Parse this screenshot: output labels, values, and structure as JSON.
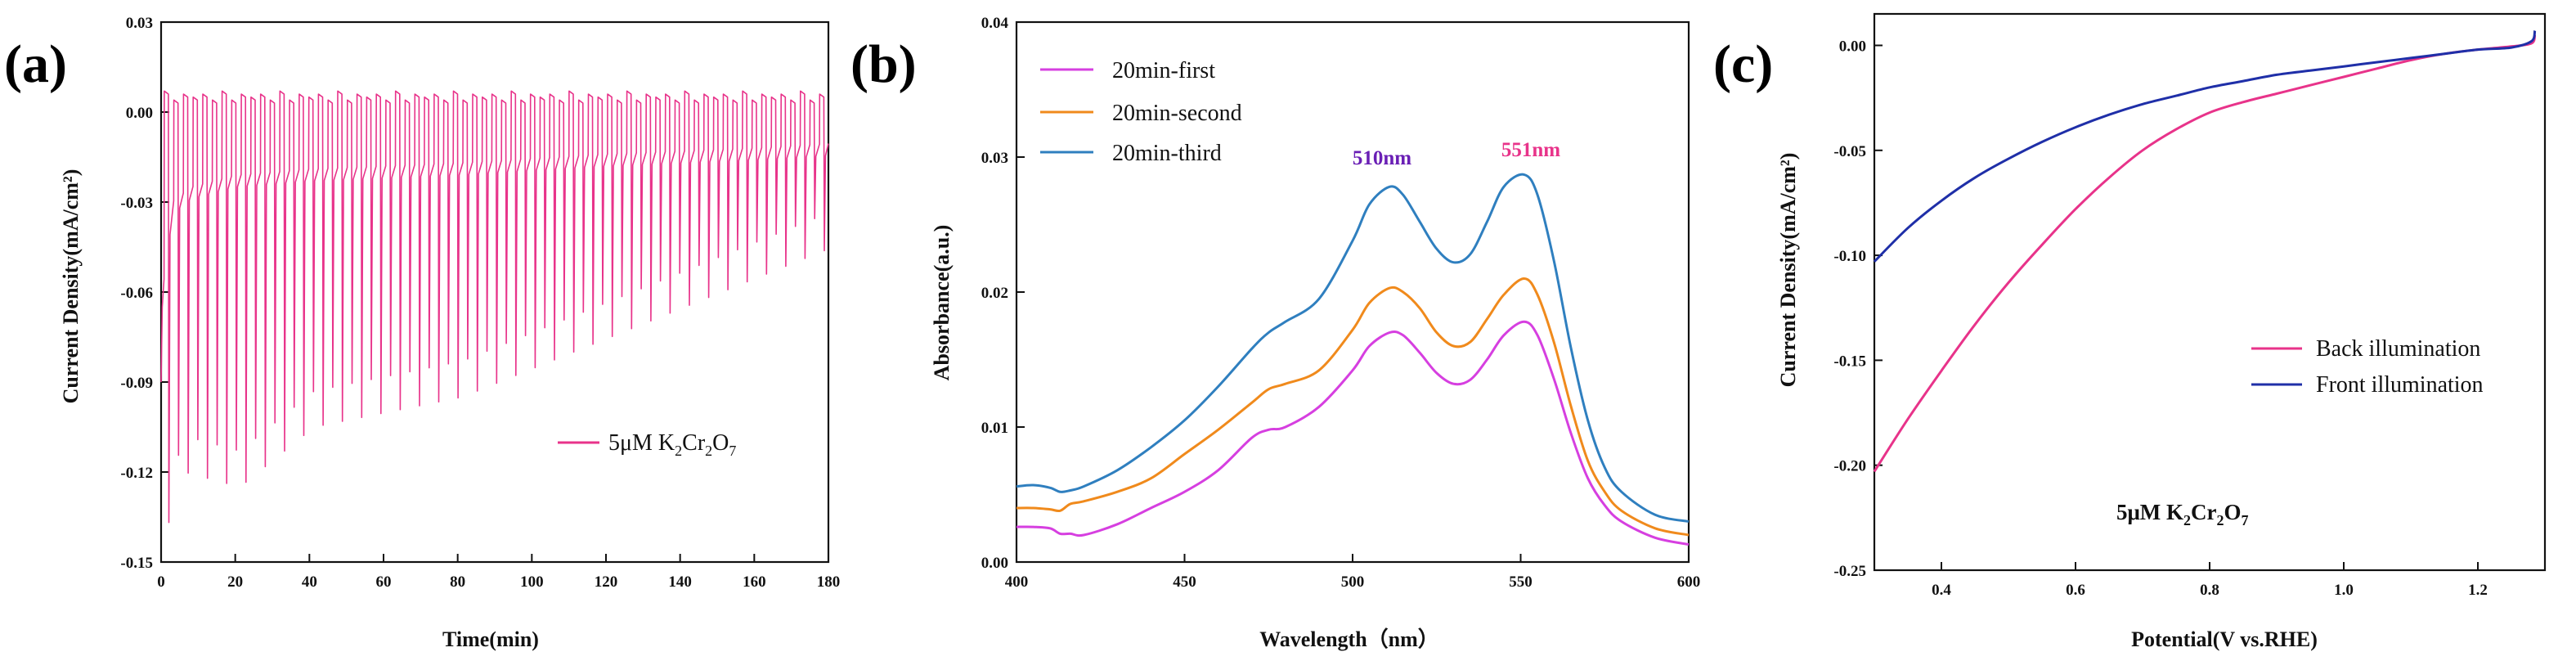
{
  "panels": [
    {
      "id": "a",
      "label": "(a)",
      "type": "line",
      "xlabel": "Time(min)",
      "ylabel": "Current Density(mA/cm²)",
      "xlim": [
        0,
        180
      ],
      "ylim": [
        -0.15,
        0.03
      ],
      "xticks": [
        0,
        20,
        40,
        60,
        80,
        100,
        120,
        140,
        160,
        180
      ],
      "xtick_labels": [
        "0",
        "20",
        "40",
        "60",
        "80",
        "100",
        "120",
        "140",
        "160",
        "180"
      ],
      "yticks": [
        0.03,
        0.0,
        -0.03,
        -0.06,
        -0.09,
        -0.12,
        -0.15
      ],
      "ytick_labels": [
        "0.03",
        "0.00",
        "-0.03",
        "-0.06",
        "-0.09",
        "-0.12",
        "-0.15"
      ],
      "legend": {
        "text": "5μM K",
        "sub1": "2",
        "mid": "Cr",
        "sub2": "2",
        "end": "O",
        "sub3": "7",
        "position": "lower-right"
      },
      "series": [
        {
          "name": "5μM K2Cr2O7",
          "color": "#e8338a",
          "pulses": {
            "period_min": 2.6,
            "start_min": 0.8,
            "peak_y": [
              0.006,
              0.004
            ],
            "dark_baseline": [
              [
                0,
                -0.065
              ],
              [
                3,
                -0.03
              ],
              [
                8,
                -0.025
              ],
              [
                20,
                -0.021
              ],
              [
                40,
                -0.019
              ],
              [
                80,
                -0.017
              ],
              [
                120,
                -0.014
              ],
              [
                160,
                -0.012
              ],
              [
                180,
                -0.0105
              ]
            ],
            "min_spike_y": [
              [
                0,
                -0.14
              ],
              [
                5,
                -0.12
              ],
              [
                20,
                -0.125
              ],
              [
                40,
                -0.105
              ],
              [
                60,
                -0.1
              ],
              [
                80,
                -0.095
              ],
              [
                100,
                -0.085
              ],
              [
                120,
                -0.075
              ],
              [
                140,
                -0.065
              ],
              [
                160,
                -0.055
              ],
              [
                180,
                -0.045
              ]
            ]
          }
        }
      ]
    },
    {
      "id": "b",
      "label": "(b)",
      "type": "line",
      "xlabel": "Wavelength（nm）",
      "ylabel": "Absorbance(a.u.)",
      "xlim": [
        400,
        600
      ],
      "ylim": [
        0,
        0.04
      ],
      "xticks": [
        400,
        450,
        500,
        550,
        600
      ],
      "xtick_labels": [
        "400",
        "450",
        "500",
        "550",
        "600"
      ],
      "yticks": [
        0.0,
        0.01,
        0.02,
        0.03,
        0.04
      ],
      "ytick_labels": [
        "0.00",
        "0.01",
        "0.02",
        "0.03",
        "0.04"
      ],
      "annotations": [
        {
          "text": "510nm",
          "x": 510,
          "y": 0.0298,
          "color": "#6a1fb5"
        },
        {
          "text": "551nm",
          "x": 551,
          "y": 0.0303,
          "color": "#e8338a"
        }
      ],
      "series": [
        {
          "name": "20min-first",
          "color": "#d63fe0",
          "x": [
            400,
            405,
            410,
            413,
            416,
            420,
            430,
            440,
            450,
            460,
            470,
            475,
            480,
            490,
            500,
            505,
            511,
            515,
            520,
            525,
            530,
            535,
            540,
            545,
            551,
            555,
            560,
            565,
            570,
            575,
            580,
            590,
            600
          ],
          "y": [
            0.0026,
            0.0026,
            0.0025,
            0.0021,
            0.0021,
            0.002,
            0.0028,
            0.004,
            0.0052,
            0.0068,
            0.0092,
            0.0098,
            0.01,
            0.0115,
            0.0142,
            0.016,
            0.017,
            0.0168,
            0.0155,
            0.014,
            0.0132,
            0.0135,
            0.015,
            0.0168,
            0.0178,
            0.0168,
            0.0135,
            0.0095,
            0.0062,
            0.0042,
            0.003,
            0.0018,
            0.0013
          ]
        },
        {
          "name": "20min-second",
          "color": "#f08a1c",
          "x": [
            400,
            405,
            410,
            413,
            416,
            420,
            430,
            440,
            450,
            460,
            470,
            475,
            480,
            490,
            500,
            505,
            511,
            515,
            520,
            525,
            530,
            535,
            540,
            545,
            551,
            555,
            560,
            565,
            570,
            575,
            580,
            590,
            600
          ],
          "y": [
            0.004,
            0.004,
            0.0039,
            0.0038,
            0.0043,
            0.0045,
            0.0052,
            0.0062,
            0.008,
            0.0098,
            0.0118,
            0.0128,
            0.0132,
            0.0142,
            0.0172,
            0.0192,
            0.0203,
            0.02,
            0.0188,
            0.017,
            0.016,
            0.0163,
            0.018,
            0.0198,
            0.021,
            0.0198,
            0.0162,
            0.0115,
            0.0075,
            0.0052,
            0.0038,
            0.0025,
            0.002
          ]
        },
        {
          "name": "20min-third",
          "color": "#2f7fbf",
          "x": [
            400,
            405,
            410,
            413,
            416,
            420,
            430,
            440,
            450,
            460,
            470,
            475,
            480,
            490,
            500,
            505,
            511,
            515,
            520,
            525,
            530,
            535,
            540,
            545,
            551,
            555,
            560,
            565,
            570,
            575,
            580,
            590,
            600
          ],
          "y": [
            0.0056,
            0.0057,
            0.0055,
            0.0052,
            0.0053,
            0.0056,
            0.0068,
            0.0085,
            0.0105,
            0.013,
            0.0158,
            0.017,
            0.0178,
            0.0195,
            0.0238,
            0.0265,
            0.0278,
            0.0272,
            0.0252,
            0.0232,
            0.0222,
            0.0228,
            0.0252,
            0.0278,
            0.0287,
            0.0272,
            0.0222,
            0.0158,
            0.0105,
            0.007,
            0.0052,
            0.0035,
            0.003
          ]
        }
      ]
    },
    {
      "id": "c",
      "label": "(c)",
      "type": "line",
      "xlabel": "Potential(V vs.RHE)",
      "ylabel": "Current Density(mA/cm²)",
      "xlim": [
        0.3,
        1.3
      ],
      "ylim": [
        -0.25,
        0.015
      ],
      "xticks": [
        0.4,
        0.6,
        0.8,
        1.0,
        1.2
      ],
      "xtick_labels": [
        "0.4",
        "0.6",
        "0.8",
        "1.0",
        "1.2"
      ],
      "yticks": [
        0.0,
        -0.05,
        -0.1,
        -0.15,
        -0.2,
        -0.25
      ],
      "ytick_labels": [
        "0.00",
        "-0.05",
        "-0.10",
        "-0.15",
        "-0.20",
        "-0.25"
      ],
      "annotation": {
        "text": "5μM K",
        "sub1": "2",
        "mid": "Cr",
        "sub2": "2",
        "end": "O",
        "sub3": "7"
      },
      "series": [
        {
          "name": "Back illumination",
          "color": "#e8338a",
          "x": [
            0.3,
            0.35,
            0.4,
            0.45,
            0.5,
            0.55,
            0.6,
            0.65,
            0.7,
            0.75,
            0.8,
            0.85,
            0.9,
            0.95,
            1.0,
            1.05,
            1.1,
            1.15,
            1.2,
            1.25,
            1.28,
            1.285
          ],
          "y": [
            -0.203,
            -0.178,
            -0.155,
            -0.133,
            -0.113,
            -0.095,
            -0.078,
            -0.063,
            -0.05,
            -0.04,
            -0.032,
            -0.027,
            -0.023,
            -0.019,
            -0.015,
            -0.011,
            -0.007,
            -0.004,
            -0.002,
            -0.0005,
            0.001,
            0.005
          ]
        },
        {
          "name": "Front illumination",
          "color": "#1f2fa8",
          "x": [
            0.3,
            0.35,
            0.4,
            0.45,
            0.5,
            0.55,
            0.6,
            0.65,
            0.7,
            0.75,
            0.8,
            0.85,
            0.9,
            0.95,
            1.0,
            1.05,
            1.1,
            1.15,
            1.2,
            1.25,
            1.28,
            1.285
          ],
          "y": [
            -0.103,
            -0.087,
            -0.074,
            -0.063,
            -0.054,
            -0.046,
            -0.039,
            -0.033,
            -0.028,
            -0.024,
            -0.02,
            -0.017,
            -0.014,
            -0.012,
            -0.01,
            -0.008,
            -0.006,
            -0.004,
            -0.002,
            -0.001,
            0.002,
            0.007
          ]
        }
      ]
    }
  ],
  "chart_data": [
    {
      "type": "line",
      "title": "(a)",
      "xlabel": "Time(min)",
      "ylabel": "Current Density(mA/cm²)",
      "xlim": [
        0,
        180
      ],
      "ylim": [
        -0.15,
        0.03
      ],
      "series": [
        {
          "name": "5μM K2Cr2O7",
          "description_values": {
            "light_on_peak": 0.005,
            "dark_baseline_start": -0.065,
            "dark_baseline_end": -0.0105,
            "largest_negative_spike": -0.14
          }
        }
      ]
    },
    {
      "type": "line",
      "title": "(b)",
      "xlabel": "Wavelength（nm）",
      "ylabel": "Absorbance(a.u.)",
      "xlim": [
        400,
        600
      ],
      "ylim": [
        0,
        0.04
      ],
      "series": [
        {
          "name": "20min-first",
          "peaks": [
            [
              511,
              0.017
            ],
            [
              551,
              0.0178
            ]
          ]
        },
        {
          "name": "20min-second",
          "peaks": [
            [
              511,
              0.0203
            ],
            [
              551,
              0.021
            ]
          ]
        },
        {
          "name": "20min-third",
          "peaks": [
            [
              511,
              0.0278
            ],
            [
              551,
              0.0287
            ]
          ]
        }
      ],
      "annotations": [
        "510nm",
        "551nm"
      ]
    },
    {
      "type": "line",
      "title": "(c)",
      "xlabel": "Potential(V vs.RHE)",
      "ylabel": "Current Density(mA/cm²)",
      "xlim": [
        0.3,
        1.3
      ],
      "ylim": [
        -0.25,
        0.015
      ],
      "series": [
        {
          "name": "Back illumination",
          "start": [
            0.3,
            -0.203
          ],
          "end": [
            1.285,
            0.005
          ]
        },
        {
          "name": "Front illumination",
          "start": [
            0.3,
            -0.103
          ],
          "end": [
            1.285,
            0.007
          ]
        }
      ]
    }
  ]
}
